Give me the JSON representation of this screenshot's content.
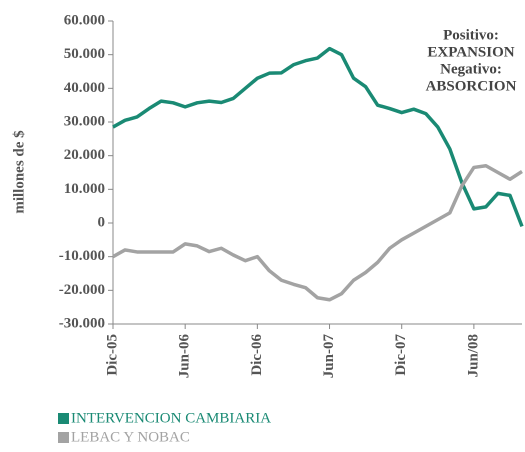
{
  "chart_data": {
    "type": "line",
    "y_label": "millones de $",
    "annotation": [
      "Positivo:",
      "EXPANSION",
      "Negativo:",
      "ABSORCION"
    ],
    "categories": [
      "Dic-05",
      null,
      null,
      null,
      null,
      null,
      "Jun-06",
      null,
      null,
      null,
      null,
      null,
      "Dic-06",
      null,
      null,
      null,
      null,
      null,
      "Jun-07",
      null,
      null,
      null,
      null,
      null,
      "Dic-07",
      null,
      null,
      null,
      null,
      null,
      "Jun/08",
      null,
      null,
      null,
      null
    ],
    "series": [
      {
        "name": "INTERVENCION CAMBIARIA",
        "color": "#1a8a74",
        "values": [
          28500,
          30500,
          31500,
          34000,
          36200,
          35700,
          34500,
          35700,
          36200,
          35800,
          37000,
          40000,
          43000,
          44500,
          44600,
          47000,
          48200,
          49000,
          51800,
          50000,
          43000,
          40500,
          35000,
          34000,
          32800,
          33800,
          32500,
          28500,
          22000,
          12000,
          4200,
          4800,
          8800,
          8200,
          -1000
        ]
      },
      {
        "name": "LEBAC Y NOBAC",
        "color": "#a3a3a3",
        "values": [
          -10000,
          -8000,
          -8600,
          -8600,
          -8600,
          -8600,
          -6200,
          -6800,
          -8500,
          -7500,
          -9500,
          -11200,
          -10000,
          -14200,
          -17000,
          -18200,
          -19200,
          -22200,
          -22800,
          -21000,
          -17000,
          -14700,
          -11700,
          -7500,
          -5000,
          -3000,
          -1000,
          1000,
          3000,
          11000,
          16500,
          17000,
          15000,
          13000,
          15300
        ]
      }
    ],
    "ylim": [
      -30000,
      60000
    ],
    "yticks": [
      {
        "value": -30000,
        "label": "-30.000"
      },
      {
        "value": -20000,
        "label": "-20.000"
      },
      {
        "value": -10000,
        "label": "-10.000"
      },
      0,
      {
        "value": 10000,
        "label": "10.000"
      },
      {
        "value": 20000,
        "label": "20.000"
      },
      {
        "value": 30000,
        "label": "30.000"
      },
      {
        "value": 40000,
        "label": "40.000"
      },
      {
        "value": 50000,
        "label": "50.000"
      },
      {
        "value": 60000,
        "label": "60.000"
      }
    ]
  }
}
